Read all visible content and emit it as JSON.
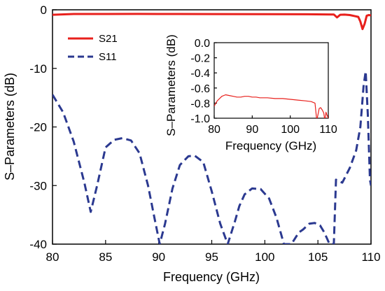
{
  "chart_data": [
    {
      "type": "line",
      "xlabel": "Frequency (GHz)",
      "ylabel": "S–Parameters (dB)",
      "xlim": [
        80,
        110
      ],
      "ylim": [
        -40,
        0
      ],
      "xticks": [
        "80",
        "85",
        "90",
        "95",
        "100",
        "105",
        "110"
      ],
      "yticks": [
        "0",
        "-10",
        "-20",
        "-30",
        "-40"
      ],
      "legend_position": "top-left",
      "grid": false,
      "series": [
        {
          "name": "S21",
          "style": "solid",
          "color": "#e8201c",
          "x": [
            80,
            82,
            85,
            88,
            90,
            95,
            100,
            104,
            106.5,
            106.8,
            107.1,
            107.5,
            108,
            108.8,
            109.0,
            109.2,
            109.4,
            109.6,
            109.8,
            110
          ],
          "y": [
            -0.85,
            -0.72,
            -0.72,
            -0.7,
            -0.72,
            -0.73,
            -0.75,
            -0.77,
            -0.8,
            -1.3,
            -0.85,
            -0.82,
            -0.9,
            -1.2,
            -2.0,
            -3.3,
            -2.4,
            -1.0,
            -0.9,
            -0.95
          ]
        },
        {
          "name": "S11",
          "style": "dashed",
          "color": "#2b3990",
          "x": [
            80,
            81,
            82,
            83,
            83.6,
            84.2,
            85,
            85.8,
            86.6,
            87.4,
            88.2,
            89,
            89.6,
            90.1,
            90.6,
            91.3,
            92,
            92.8,
            93.4,
            94.2,
            95,
            95.8,
            96.5,
            97.2,
            97.6,
            98.1,
            98.8,
            99.6,
            100.4,
            101.1,
            101.8,
            102.5,
            103.2,
            103.6,
            104.2,
            104.7,
            105.2,
            105.6,
            106.1,
            106.5,
            106.7,
            107.3,
            108,
            108.6,
            109,
            109.3,
            109.5,
            109.7,
            109.9,
            110
          ],
          "y": [
            -14.5,
            -17.5,
            -22.5,
            -29.5,
            -34.5,
            -30,
            -23.5,
            -22.2,
            -21.9,
            -22.3,
            -24.5,
            -30,
            -35.5,
            -40,
            -36.5,
            -30.5,
            -26.5,
            -25,
            -24.9,
            -26,
            -31,
            -36.5,
            -40,
            -36,
            -33.5,
            -31.5,
            -30.5,
            -30.6,
            -32.2,
            -35.5,
            -40,
            -40,
            -38,
            -37.5,
            -36.5,
            -36.4,
            -36.8,
            -38,
            -40,
            -40,
            -29,
            -29.5,
            -27,
            -24,
            -20,
            -13,
            -10.5,
            -18,
            -29,
            -30
          ]
        }
      ],
      "inset": {
        "xlabel": "Frequency (GHz)",
        "ylabel": "S–Parameters (dB)",
        "xlim": [
          80,
          110
        ],
        "ylim": [
          -1.0,
          0.0
        ],
        "xticks": [
          "80",
          "90",
          "100",
          "110"
        ],
        "yticks": [
          "0.0",
          "-0.2",
          "-0.4",
          "-0.6",
          "-0.8",
          "-1.0"
        ],
        "series": [
          {
            "name": "S21",
            "color": "#e8201c",
            "x": [
              80,
              80.8,
              82,
              83,
              84,
              85,
              86,
              87,
              88,
              89,
              90,
              91,
              92,
              94,
              96,
              98,
              100,
              102,
              104,
              105.5,
              106.5,
              106.9,
              107.1,
              107.3,
              107.6,
              108,
              108.4,
              108.8,
              109.0,
              109.2,
              109.4,
              109.6,
              110
            ],
            "y": [
              -0.84,
              -0.77,
              -0.71,
              -0.69,
              -0.7,
              -0.71,
              -0.72,
              -0.72,
              -0.71,
              -0.71,
              -0.72,
              -0.72,
              -0.73,
              -0.73,
              -0.74,
              -0.74,
              -0.75,
              -0.76,
              -0.77,
              -0.78,
              -0.8,
              -1.0,
              -1.0,
              -0.95,
              -0.87,
              -0.86,
              -0.89,
              -0.93,
              -1.0,
              -1.0,
              -0.92,
              -0.95,
              -1.0
            ]
          }
        ]
      }
    }
  ]
}
